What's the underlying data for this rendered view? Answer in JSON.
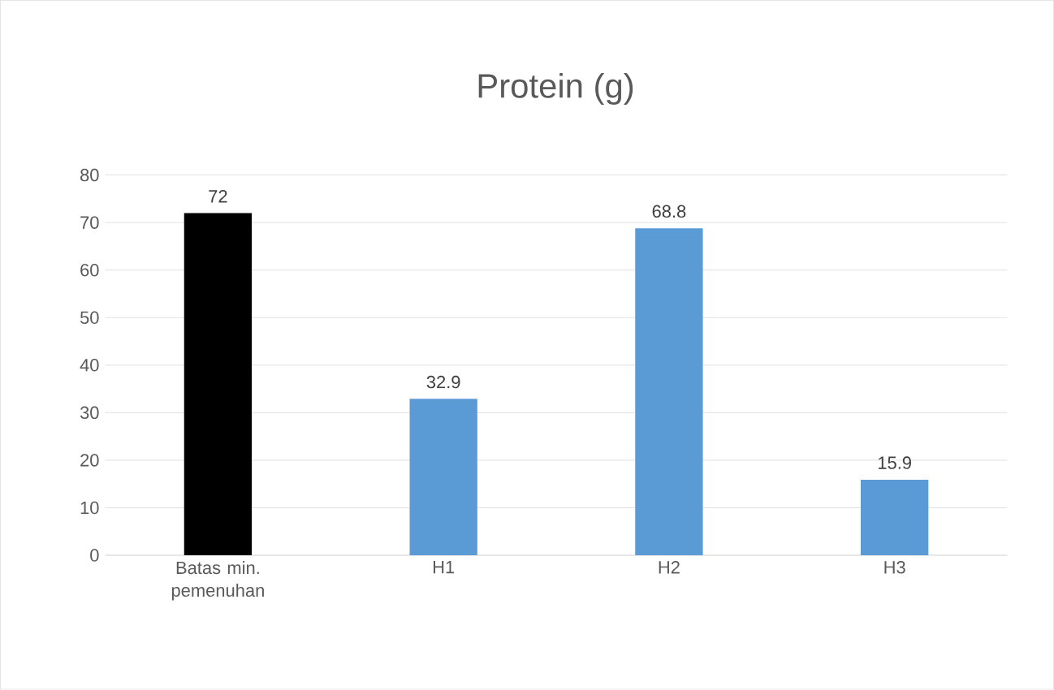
{
  "chart_data": {
    "type": "bar",
    "title": "Protein (g)",
    "categories": [
      "Batas min. pemenuhan",
      "H1",
      "H2",
      "H3"
    ],
    "values": [
      72,
      32.9,
      68.8,
      15.9
    ],
    "colors": [
      "#000000",
      "#5b9bd5",
      "#5b9bd5",
      "#5b9bd5"
    ],
    "ylim": [
      0,
      80
    ],
    "yticks": [
      0,
      10,
      20,
      30,
      40,
      50,
      60,
      70,
      80
    ],
    "grid": "y",
    "data_labels": true
  }
}
